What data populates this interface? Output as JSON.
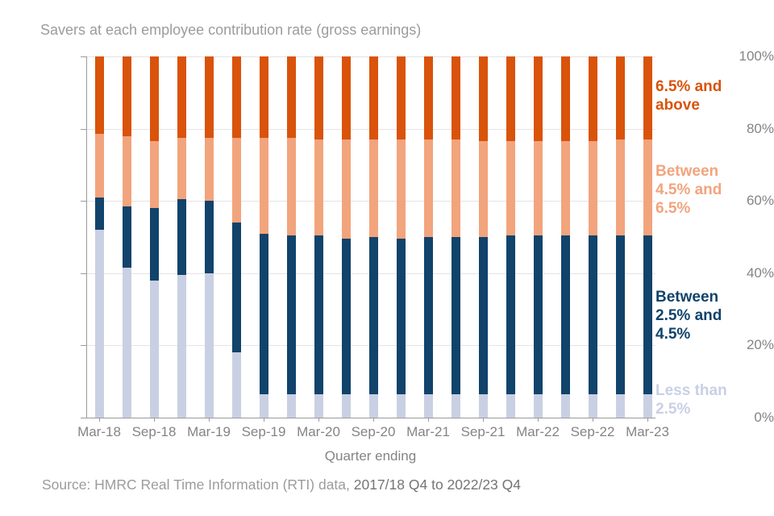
{
  "title": "Savers at each employee contribution rate (gross earnings)",
  "source": {
    "prefix": "Source: HMRC Real Time Information (RTI) data, ",
    "period": "2017/18 Q4 to 2022/23 Q4"
  },
  "legend": {
    "items": [
      {
        "label": "6.5% and above",
        "text": "6.5% and\nabove",
        "color": "#d9530b"
      },
      {
        "label": "Between 4.5% and 6.5%",
        "text": "Between\n4.5% and\n6.5%",
        "color": "#f2a47d"
      },
      {
        "label": "Between 2.5% and 4.5%",
        "text": "Between\n2.5% and\n4.5%",
        "color": "#11436b"
      },
      {
        "label": "Less than 2.5%",
        "text": "Less than\n2.5%",
        "color": "#c9d0e4"
      }
    ]
  },
  "chart_data": {
    "type": "bar",
    "stacked": true,
    "units": "percent of savers",
    "title": "Savers at each employee contribution rate (gross earnings)",
    "xlabel": "Quarter ending",
    "ylabel": "",
    "ylim": [
      0,
      100
    ],
    "grid": true,
    "legend_position": "right",
    "y_ticks": [
      "0%",
      "20%",
      "40%",
      "60%",
      "80%",
      "100%"
    ],
    "x_tick_labels": [
      "Mar-18",
      "Sep-18",
      "Mar-19",
      "Sep-19",
      "Mar-20",
      "Sep-20",
      "Mar-21",
      "Sep-21",
      "Mar-22",
      "Sep-22",
      "Mar-23"
    ],
    "categories": [
      "Mar-18",
      "Jun-18",
      "Sep-18",
      "Dec-18",
      "Mar-19",
      "Jun-19",
      "Sep-19",
      "Dec-19",
      "Mar-20",
      "Jun-20",
      "Sep-20",
      "Dec-20",
      "Mar-21",
      "Jun-21",
      "Sep-21",
      "Dec-21",
      "Mar-22",
      "Jun-22",
      "Sep-22",
      "Dec-22",
      "Mar-23"
    ],
    "series": [
      {
        "name": "Less than 2.5%",
        "color": "#c9d0e4",
        "values": [
          52,
          41.5,
          38,
          39.5,
          40,
          18,
          6.5,
          6.5,
          6.5,
          6.5,
          6.5,
          6.5,
          6.5,
          6.5,
          6.5,
          6.5,
          6.5,
          6.5,
          6.5,
          6.5,
          6.5
        ]
      },
      {
        "name": "Between 2.5% and 4.5%",
        "color": "#11436b",
        "values": [
          9,
          17,
          20,
          21,
          20,
          36,
          44.5,
          44,
          44,
          43,
          43.5,
          43,
          43.5,
          43.5,
          43.5,
          44,
          44,
          44,
          44,
          44,
          44
        ]
      },
      {
        "name": "Between 4.5% and 6.5%",
        "color": "#f2a47d",
        "values": [
          17.5,
          19.5,
          18.5,
          17,
          17.5,
          23.5,
          26.5,
          27,
          26.5,
          27.5,
          27,
          27.5,
          27,
          27,
          26.5,
          26,
          26,
          26,
          26,
          26.5,
          26.5
        ]
      },
      {
        "name": "6.5% and above",
        "color": "#d9530b",
        "values": [
          21.5,
          22,
          23.5,
          22.5,
          22.5,
          22.5,
          22.5,
          22.5,
          23,
          23,
          23,
          23,
          23,
          23,
          23.5,
          23.5,
          23.5,
          23.5,
          23.5,
          23,
          23
        ]
      }
    ]
  }
}
